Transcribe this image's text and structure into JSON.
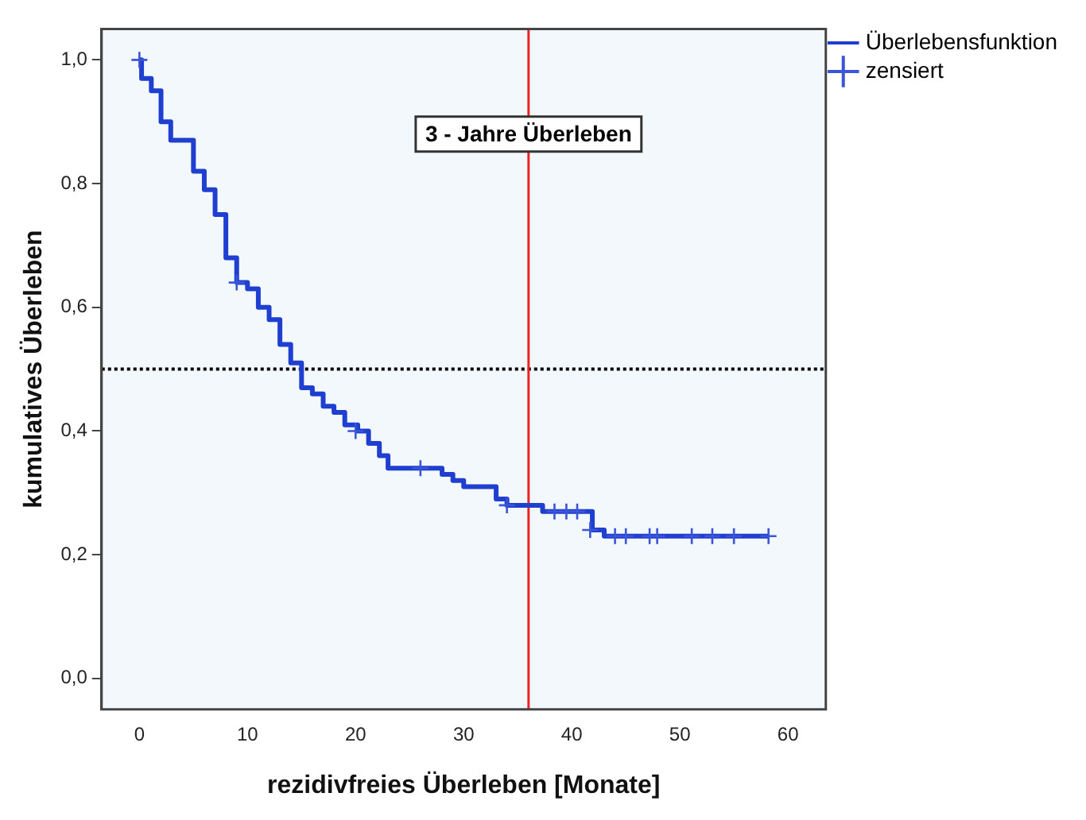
{
  "chart_data": {
    "type": "step",
    "xlabel": "rezidivfreies Überleben [Monate]",
    "ylabel": "kumulatives Überleben",
    "xlim": [
      -3.5,
      63.5
    ],
    "xticks": [
      0,
      10,
      20,
      30,
      40,
      50,
      60
    ],
    "ylim": [
      -0.05,
      1.05
    ],
    "yticks": [
      {
        "value": 0,
        "label": "0,0"
      },
      {
        "value": 0.2,
        "label": "0,2"
      },
      {
        "value": 0.4,
        "label": "0,4"
      },
      {
        "value": 0.6,
        "label": "0,6"
      },
      {
        "value": 0.8,
        "label": "0,8"
      },
      {
        "value": 1,
        "label": "1,0"
      }
    ],
    "grid": false,
    "legend": "top right",
    "line_style": "solid",
    "series": [
      {
        "name": "Überlebensfunktion",
        "type": "step",
        "color": "#1f3fd0",
        "marker": "none",
        "x": [
          0,
          0.2,
          1.1,
          2,
          2.9,
          5,
          6,
          7,
          8,
          9,
          10,
          11,
          12,
          13,
          14,
          15,
          16,
          17,
          18,
          19,
          20.2,
          21.2,
          22.2,
          23,
          28,
          29,
          30,
          33,
          34,
          35,
          37.3,
          41.9,
          43,
          58.2
        ],
        "values": [
          1,
          0.97,
          0.95,
          0.9,
          0.87,
          0.82,
          0.79,
          0.75,
          0.68,
          0.64,
          0.63,
          0.6,
          0.58,
          0.54,
          0.51,
          0.47,
          0.46,
          0.44,
          0.43,
          0.41,
          0.4,
          0.38,
          0.36,
          0.34,
          0.33,
          0.32,
          0.31,
          0.29,
          0.28,
          0.28,
          0.27,
          0.24,
          0.23,
          0.23
        ]
      },
      {
        "name": "zensiert",
        "type": "scatter",
        "color": "#3a55d8",
        "marker": "cross",
        "x": [
          0,
          9,
          20,
          26,
          34,
          38.4,
          39.5,
          40.5,
          41.7,
          44,
          45,
          47.2,
          47.9,
          51.1,
          53,
          55,
          58.2
        ],
        "values": [
          1,
          0.64,
          0.4,
          0.34,
          0.28,
          0.27,
          0.27,
          0.27,
          0.24,
          0.23,
          0.23,
          0.23,
          0.23,
          0.23,
          0.23,
          0.23,
          0.23
        ]
      }
    ],
    "ref_lines": [
      {
        "axis": "y",
        "value": 0.5,
        "color": "#000000",
        "line_style": "dotted"
      },
      {
        "axis": "x",
        "value": 36,
        "color": "#ee2222",
        "line_style": "solid"
      }
    ],
    "annotations": [
      {
        "text": "3 - Jahre Überleben",
        "x": 36,
        "y": 0.88
      }
    ]
  }
}
